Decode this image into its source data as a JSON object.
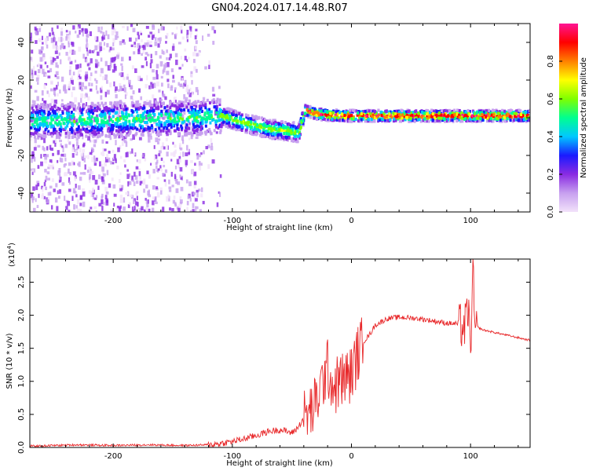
{
  "title": "GN04.2024.017.14.48.R07",
  "chart_data": [
    {
      "type": "heatmap",
      "name": "spectrogram",
      "xlabel": "Height of straight line (km)",
      "ylabel": "Frequency (Hz)",
      "xlim": [
        -270,
        150
      ],
      "ylim": [
        -50,
        50
      ],
      "xticks": [
        -200,
        -100,
        0,
        100
      ],
      "yticks": [
        -40,
        -20,
        0,
        20,
        40
      ],
      "colorbar": {
        "label": "Normalized spectral amplitude",
        "range": [
          0,
          1
        ],
        "ticks": [
          "0.0",
          "0.2",
          "0.4",
          "0.6",
          "0.8"
        ],
        "colors": [
          "#f2e2fa",
          "#c7a0ef",
          "#8a2be2",
          "#1a1aff",
          "#00c8ff",
          "#00ff90",
          "#7fff00",
          "#ffff00",
          "#ff8000",
          "#ff0000",
          "#ff1493"
        ]
      },
      "ridge": [
        {
          "x": -270,
          "f": -2
        },
        {
          "x": -200,
          "f": -1
        },
        {
          "x": -130,
          "f": 0
        },
        {
          "x": -110,
          "f": 1
        },
        {
          "x": -90,
          "f": -3
        },
        {
          "x": -70,
          "f": -6
        },
        {
          "x": -55,
          "f": -7
        },
        {
          "x": -45,
          "f": -8
        },
        {
          "x": -40,
          "f": 4
        },
        {
          "x": -30,
          "f": 2
        },
        {
          "x": -10,
          "f": 1
        },
        {
          "x": 10,
          "f": 1
        },
        {
          "x": 50,
          "f": 1
        },
        {
          "x": 90,
          "f": 1
        },
        {
          "x": 100,
          "f": 1
        },
        {
          "x": 150,
          "f": 1
        }
      ]
    },
    {
      "type": "line",
      "name": "snr",
      "xlabel": "Height of straight line (km)",
      "ylabel": "SNR (10 * v/v)",
      "yscale_label": "(x10",
      "yscale_exp": "4",
      "xlim": [
        -270,
        150
      ],
      "ylim": [
        0,
        2.85
      ],
      "xticks": [
        -200,
        -100,
        0,
        100
      ],
      "yticks": [
        "0.0",
        "0.5",
        "1.0",
        "1.5",
        "2.0",
        "2.5"
      ],
      "color": "#e8282a",
      "x": [
        -270,
        -250,
        -230,
        -200,
        -170,
        -140,
        -120,
        -110,
        -100,
        -90,
        -80,
        -70,
        -60,
        -50,
        -45,
        -40,
        -35,
        -30,
        -25,
        -20,
        -15,
        -10,
        -5,
        0,
        5,
        10,
        15,
        20,
        25,
        30,
        40,
        50,
        60,
        70,
        80,
        90,
        95,
        98,
        100,
        102,
        104,
        106,
        110,
        120,
        130,
        140,
        150
      ],
      "y": [
        0.02,
        0.03,
        0.04,
        0.03,
        0.04,
        0.03,
        0.04,
        0.06,
        0.09,
        0.13,
        0.18,
        0.24,
        0.27,
        0.22,
        0.3,
        0.45,
        0.52,
        0.65,
        0.95,
        1.2,
        0.9,
        1.0,
        1.05,
        1.1,
        1.4,
        1.6,
        1.7,
        1.85,
        1.9,
        1.95,
        1.97,
        1.96,
        1.94,
        1.91,
        1.88,
        1.87,
        1.8,
        2.1,
        1.5,
        2.6,
        1.7,
        1.82,
        1.78,
        1.74,
        1.7,
        1.66,
        1.62
      ]
    }
  ]
}
